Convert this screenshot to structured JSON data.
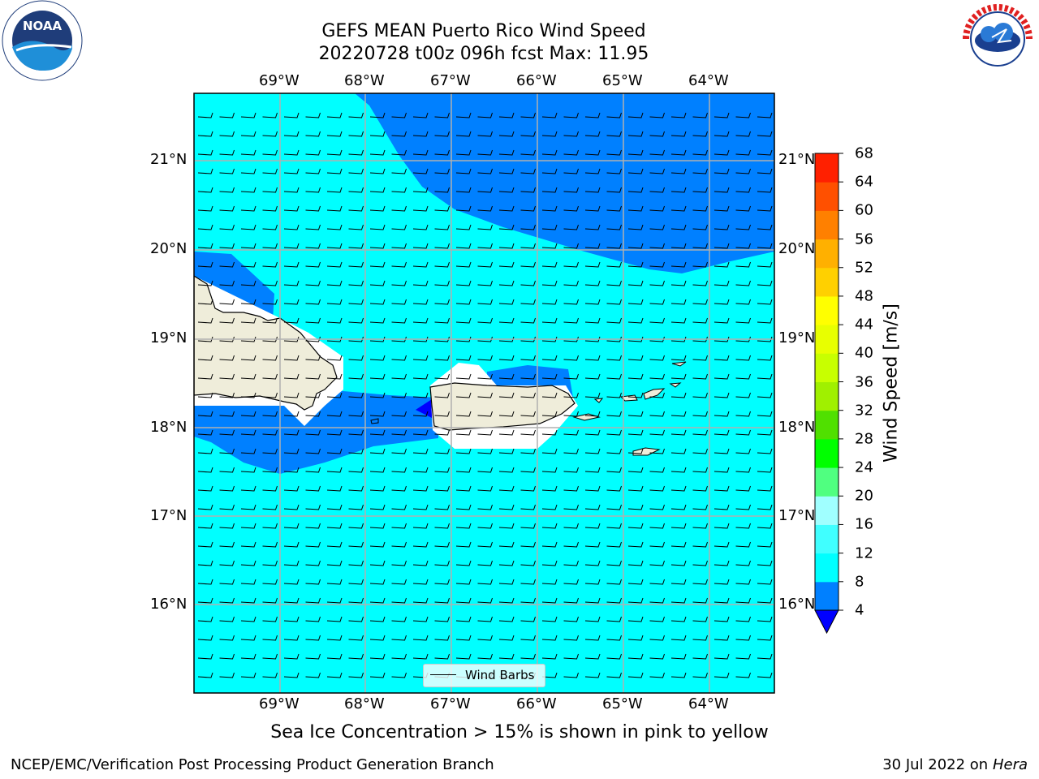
{
  "title": {
    "line1": "GEFS MEAN Puerto Rico Wind Speed",
    "line2": "20220728 t00z 096h fcst   Max: 11.95"
  },
  "map": {
    "lon_ticks": [
      "69°W",
      "68°W",
      "67°W",
      "66°W",
      "65°W",
      "64°W"
    ],
    "lat_ticks": [
      "21°N",
      "20°N",
      "19°N",
      "18°N",
      "17°N",
      "16°N"
    ],
    "colors": {
      "ocean_4_8": "#0080ff",
      "ocean_8_12": "#00ffff",
      "below_4": "#0000ff",
      "land": "#efedda",
      "gridline": "#b0b0b0"
    },
    "legend_label": "Wind Barbs"
  },
  "colorbar": {
    "label": "Wind Speed [m/s]",
    "ticks": [
      "68",
      "64",
      "60",
      "56",
      "52",
      "48",
      "44",
      "40",
      "36",
      "32",
      "28",
      "24",
      "20",
      "16",
      "12",
      "8",
      "4"
    ],
    "colors": [
      "#0000ff",
      "#0080ff",
      "#00ffff",
      "#40ffff",
      "#a0ffff",
      "#50ff80",
      "#00ff00",
      "#50e000",
      "#a0f000",
      "#c8ff00",
      "#e8ff00",
      "#ffff00",
      "#ffd000",
      "#ffb000",
      "#ff8000",
      "#ff5000",
      "#ff2000",
      "#ff0000"
    ]
  },
  "subnote": "Sea Ice Concentration > 15% is shown in pink to yellow",
  "footer": {
    "left": "NCEP/EMC/Verification Post Processing Product Generation Branch",
    "right_date": "30 Jul 2022 on ",
    "right_host": "Hera"
  },
  "logos": {
    "noaa_text": "NOAA",
    "nws_text": "NATIONAL WEATHER SERVICE"
  }
}
